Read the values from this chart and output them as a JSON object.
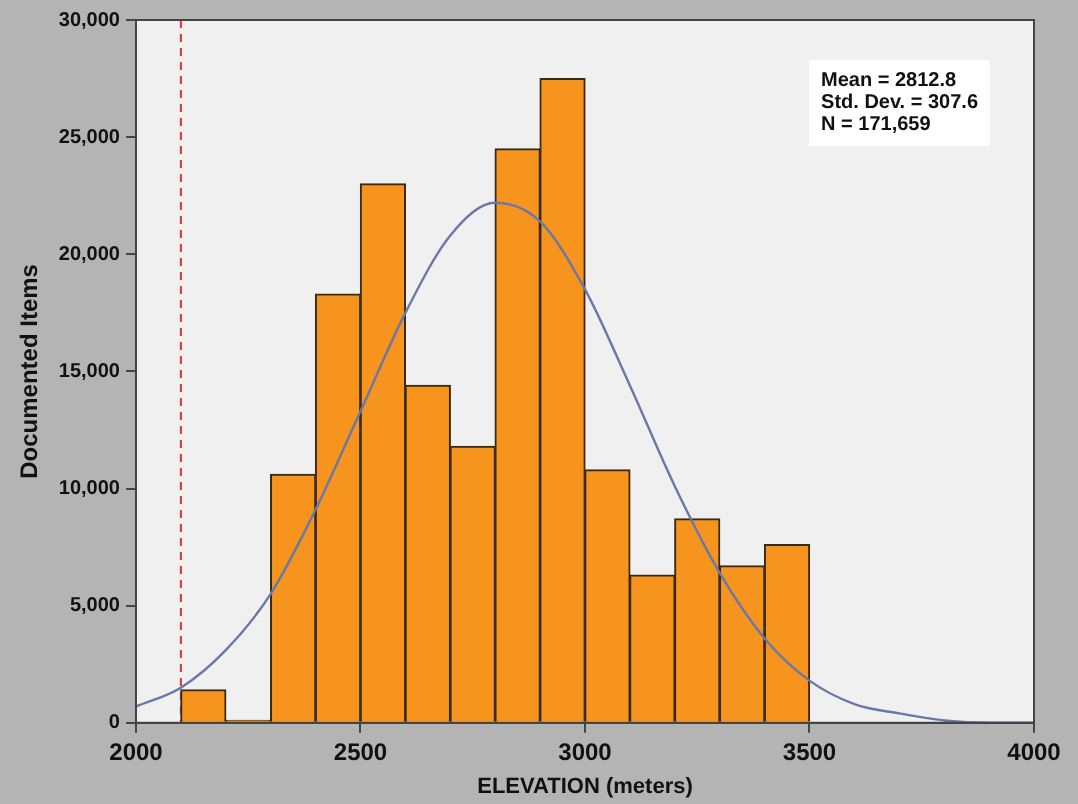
{
  "chart_data": {
    "type": "histogram",
    "xlabel": "ELEVATION (meters)",
    "ylabel": "Documented Items",
    "bins": [
      2100,
      2200,
      2300,
      2400,
      2500,
      2600,
      2700,
      2800,
      2900,
      3000,
      3100,
      3200,
      3300,
      3400,
      3500
    ],
    "values": [
      1400,
      100,
      10600,
      18300,
      23000,
      14400,
      11800,
      24500,
      27500,
      10800,
      6300,
      8700,
      6700,
      7600
    ],
    "color": "#f7941d",
    "series": [
      {
        "type": "line",
        "color": "#6878a8",
        "x": [
          2000,
          2100,
          2200,
          2300,
          2400,
          2500,
          2600,
          2700,
          2800,
          2900,
          3000,
          3100,
          3200,
          3300,
          3400,
          3500,
          3600,
          3700,
          3800,
          3900,
          4000
        ],
        "values": [
          700,
          1500,
          3100,
          5500,
          9100,
          13300,
          17500,
          20800,
          22200,
          21400,
          18500,
          14400,
          10100,
          6400,
          3600,
          1800,
          800,
          400,
          100,
          0,
          0
        ]
      }
    ],
    "xlim": [
      2000,
      4000
    ],
    "xticks": [
      {
        "value": 2000,
        "label": "2000"
      },
      {
        "value": 2500,
        "label": "2500"
      },
      {
        "value": 3000,
        "label": "3000"
      },
      {
        "value": 3500,
        "label": "3500"
      },
      {
        "value": 4000,
        "label": "4000"
      }
    ],
    "ylim": [
      0,
      30000
    ],
    "yticks": [
      {
        "value": 0,
        "label": "0"
      },
      {
        "value": 5000,
        "label": "5,000"
      },
      {
        "value": 10000,
        "label": "10,000"
      },
      {
        "value": 15000,
        "label": "15,000"
      },
      {
        "value": 20000,
        "label": "20,000"
      },
      {
        "value": 25000,
        "label": "25,000"
      },
      {
        "value": 30000,
        "label": "30,000"
      }
    ],
    "ref_lines": [
      {
        "axis": "x",
        "value": 2100,
        "color": "#e03030",
        "line_style": "dashed"
      }
    ],
    "annotations": [
      "Mean = 2812.8\nStd. Dev. = 307.6\nN = 171,659"
    ],
    "grid": false,
    "legend": false
  }
}
